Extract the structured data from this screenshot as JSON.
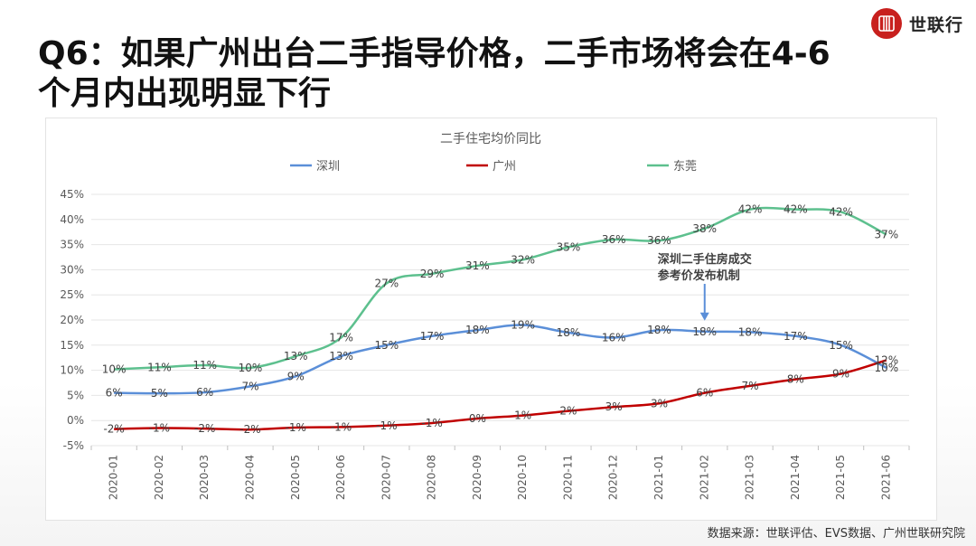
{
  "brand": {
    "name": "世联行",
    "logo_glyph": "行",
    "accent": "#c8201e"
  },
  "page": {
    "title_line1": "Q6：如果广州出台二手指导价格，二手市场将会在4-6",
    "title_line2": "个月内出现明显下行"
  },
  "footer": {
    "source": "数据来源：世联评估、EVS数据、广州世联研究院"
  },
  "chart_data": {
    "type": "line",
    "title": "二手住宅均价同比",
    "xlabel": "",
    "ylabel": "",
    "ylim": [
      -5,
      45
    ],
    "yticks": [
      -5,
      0,
      5,
      10,
      15,
      20,
      25,
      30,
      35,
      40,
      45
    ],
    "ytick_labels": [
      "-5%",
      "0%",
      "5%",
      "10%",
      "15%",
      "20%",
      "25%",
      "30%",
      "35%",
      "40%",
      "45%"
    ],
    "grid": true,
    "legend_position": "top",
    "categories": [
      "2020-01",
      "2020-02",
      "2020-03",
      "2020-04",
      "2020-05",
      "2020-06",
      "2020-07",
      "2020-08",
      "2020-09",
      "2020-10",
      "2020-11",
      "2020-12",
      "2021-01",
      "2021-02",
      "2021-03",
      "2021-04",
      "2021-05",
      "2021-06"
    ],
    "series": [
      {
        "name": "深圳",
        "color": "#5b8fd8",
        "values": [
          5.5,
          5.4,
          5.6,
          6.8,
          8.8,
          12.8,
          15.0,
          16.8,
          18.0,
          19.0,
          17.5,
          16.5,
          18.0,
          17.7,
          17.6,
          16.8,
          15.0,
          10.5
        ],
        "labels": [
          "6%",
          "5%",
          "6%",
          "7%",
          "9%",
          "13%",
          "15%",
          "17%",
          "18%",
          "19%",
          "18%",
          "16%",
          "18%",
          "18%",
          "18%",
          "17%",
          "15%",
          "10%"
        ]
      },
      {
        "name": "广州",
        "color": "#c00000",
        "values": [
          -1.7,
          -1.5,
          -1.6,
          -1.8,
          -1.4,
          -1.3,
          -1.0,
          -0.5,
          0.4,
          1.0,
          1.9,
          2.7,
          3.4,
          5.5,
          6.9,
          8.2,
          9.3,
          12.0
        ],
        "labels": [
          "-2%",
          "-1%",
          "-2%",
          "-2%",
          "-1%",
          "-1%",
          "-1%",
          "-1%",
          "0%",
          "1%",
          "2%",
          "3%",
          "3%",
          "6%",
          "7%",
          "8%",
          "9%",
          "12%"
        ]
      },
      {
        "name": "东莞",
        "color": "#5dc08e",
        "values": [
          10.2,
          10.6,
          11.0,
          10.5,
          12.8,
          16.5,
          27.3,
          29.2,
          30.8,
          32.0,
          34.5,
          36.0,
          35.8,
          38.2,
          42.0,
          42.0,
          41.5,
          37.0
        ],
        "labels": [
          "10%",
          "11%",
          "11%",
          "10%",
          "13%",
          "17%",
          "27%",
          "29%",
          "31%",
          "32%",
          "35%",
          "36%",
          "36%",
          "38%",
          "42%",
          "42%",
          "42%",
          "37%"
        ]
      }
    ],
    "annotation": {
      "line1": "深圳二手住房成交",
      "line2": "参考价发布机制",
      "category": "2021-02",
      "series": "深圳"
    }
  }
}
